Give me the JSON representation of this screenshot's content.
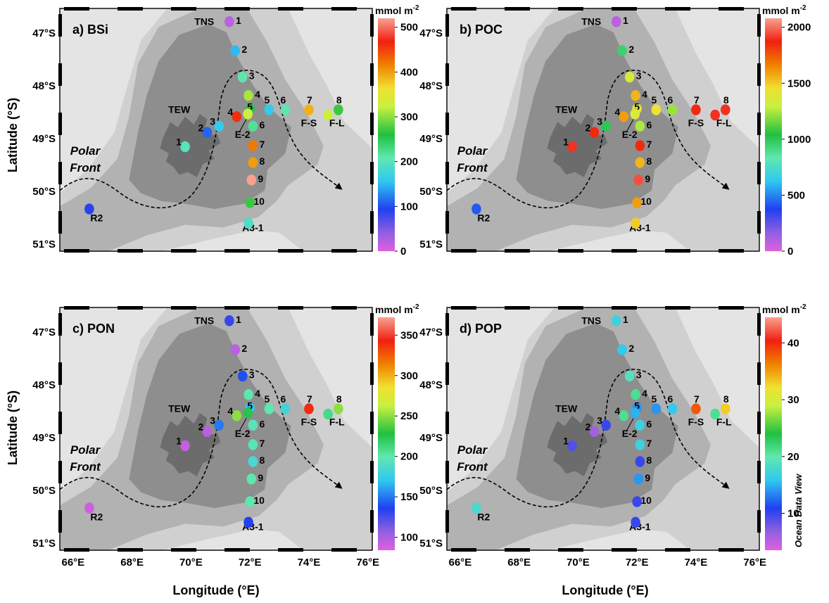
{
  "figure": {
    "ylabel": "Latitude (°S)",
    "xlabel": "Longitude (°E)",
    "unit": "mmol m",
    "unit_sup": "-2",
    "polar_front": [
      "Polar",
      "Front"
    ],
    "watermark": "Ocean Data View",
    "lat_ticks": [
      "47°S",
      "48°S",
      "49°S",
      "50°S",
      "51°S"
    ],
    "lon_ticks": [
      "66°E",
      "68°E",
      "70°E",
      "72°E",
      "74°E",
      "76°E"
    ],
    "region_labels": {
      "tns": "TNS",
      "tew": "TEW",
      "e2": "E-2",
      "r2": "R2",
      "fs": "F-S",
      "fl": "F-L",
      "a31": "A3-1"
    },
    "colors": {
      "land": "#6c6c6c",
      "shelf": "#8e8e8e",
      "slope": "#b2b2b2",
      "ocean": "#d0d0d0",
      "open": "#e4e4e4"
    }
  },
  "stations": [
    {
      "id": "TNS1",
      "label": "1",
      "lon": 71.3,
      "lat": 46.8
    },
    {
      "id": "TNS2",
      "label": "2",
      "lon": 71.5,
      "lat": 47.35
    },
    {
      "id": "TNS3",
      "label": "3",
      "lon": 71.75,
      "lat": 47.85
    },
    {
      "id": "TNS4",
      "label": "4",
      "lon": 71.95,
      "lat": 48.2
    },
    {
      "id": "TNS5",
      "label": "5",
      "lon": 72.0,
      "lat": 48.45
    },
    {
      "id": "TNS6",
      "label": "6",
      "lon": 72.1,
      "lat": 48.78
    },
    {
      "id": "TNS7",
      "label": "7",
      "lon": 74.0,
      "lat": 48.47
    },
    {
      "id": "TNS8",
      "label": "8",
      "lon": 75.0,
      "lat": 48.47
    },
    {
      "id": "TEW1",
      "label": "1",
      "lon": 69.8,
      "lat": 49.17
    },
    {
      "id": "TEW2",
      "label": "2",
      "lon": 70.55,
      "lat": 48.9
    },
    {
      "id": "TEW3",
      "label": "3",
      "lon": 70.95,
      "lat": 48.78
    },
    {
      "id": "TEW4",
      "label": "4",
      "lon": 71.55,
      "lat": 48.6
    },
    {
      "id": "TEW5",
      "label": "5",
      "lon": 72.65,
      "lat": 48.47
    },
    {
      "id": "TEW6",
      "label": "6",
      "lon": 73.2,
      "lat": 48.47
    },
    {
      "id": "E2",
      "label": "",
      "lon": 71.93,
      "lat": 48.55
    },
    {
      "id": "FS",
      "label": "",
      "lon": 74.65,
      "lat": 48.57
    },
    {
      "id": "A3_7",
      "label": "7",
      "lon": 72.1,
      "lat": 49.15
    },
    {
      "id": "A3_8",
      "label": "8",
      "lon": 72.1,
      "lat": 49.47
    },
    {
      "id": "A3_9",
      "label": "9",
      "lon": 72.05,
      "lat": 49.8
    },
    {
      "id": "A3_10",
      "label": "10",
      "lon": 72.0,
      "lat": 50.23
    },
    {
      "id": "A31",
      "label": "",
      "lon": 71.95,
      "lat": 50.62
    },
    {
      "id": "R2",
      "label": "",
      "lon": 66.55,
      "lat": 50.35
    }
  ],
  "panels": [
    {
      "title": "a) BSi",
      "scale_ticks": [
        "500",
        "400",
        "300",
        "200",
        "100",
        "0"
      ],
      "scale_values": [
        500,
        400,
        300,
        200,
        100,
        0
      ],
      "range": [
        0,
        520
      ],
      "values": {
        "TNS1": 20,
        "TNS2": 150,
        "TNS3": 210,
        "TNS4": 310,
        "TNS5": 255,
        "TNS6": 220,
        "TNS7": 390,
        "TNS8": 270,
        "TEW1": 200,
        "TEW2": 110,
        "TEW3": 160,
        "TEW4": 460,
        "TEW5": 160,
        "TEW6": 210,
        "E2": 330,
        "FS": 330,
        "A3_7": 420,
        "A3_8": 400,
        "A3_9": 520,
        "A3_10": 270,
        "A31": 190,
        "R2": 90
      }
    },
    {
      "title": "b) POC",
      "scale_ticks": [
        "2000",
        "1500",
        "1000",
        "500",
        "0"
      ],
      "scale_values": [
        2000,
        1500,
        1000,
        500,
        0
      ],
      "range": [
        0,
        2080
      ],
      "values": {
        "TNS1": 80,
        "TNS2": 950,
        "TNS3": 1350,
        "TNS4": 1550,
        "TNS5": 1400,
        "TNS6": 1250,
        "TNS7": 1850,
        "TNS8": 1900,
        "TEW1": 1900,
        "TEW2": 1850,
        "TEW3": 1000,
        "TEW4": 1600,
        "TEW5": 1450,
        "TEW6": 1220,
        "E2": 1350,
        "FS": 1900,
        "A3_7": 1850,
        "A3_8": 1550,
        "A3_9": 1950,
        "A3_10": 1600,
        "A31": 1500,
        "R2": 420
      }
    },
    {
      "title": "c) PON",
      "scale_ticks": [
        "350",
        "300",
        "250",
        "200",
        "150",
        "100"
      ],
      "scale_values": [
        350,
        300,
        250,
        200,
        150,
        100
      ],
      "range": [
        84,
        372
      ],
      "values": {
        "TNS1": 130,
        "TNS2": 95,
        "TNS3": 140,
        "TNS4": 200,
        "TNS5": 170,
        "TNS6": 195,
        "TNS7": 340,
        "TNS8": 250,
        "TEW1": 92,
        "TEW2": 95,
        "TEW3": 150,
        "TEW4": 250,
        "TEW5": 200,
        "TEW6": 180,
        "E2": 225,
        "FS": 210,
        "A3_7": 195,
        "A3_8": 185,
        "A3_9": 200,
        "A3_10": 200,
        "A31": 135,
        "R2": 90
      }
    },
    {
      "title": "d) POP",
      "scale_ticks": [
        "40",
        "30",
        "20",
        "10"
      ],
      "scale_values": [
        40,
        30,
        20,
        10
      ],
      "range": [
        3.5,
        44.5
      ],
      "values": {
        "TNS1": 17,
        "TNS2": 16,
        "TNS3": 19,
        "TNS4": 21,
        "TNS5": 14,
        "TNS6": 17,
        "TNS7": 38,
        "TNS8": 33,
        "TEW1": 9,
        "TEW2": 6,
        "TEW3": 10,
        "TEW4": 21,
        "TEW5": 14,
        "TEW6": 16,
        "E2": 15,
        "FS": 21,
        "A3_7": 17,
        "A3_8": 10,
        "A3_9": 14,
        "A3_10": 10,
        "A31": 10,
        "R2": 18
      }
    }
  ]
}
